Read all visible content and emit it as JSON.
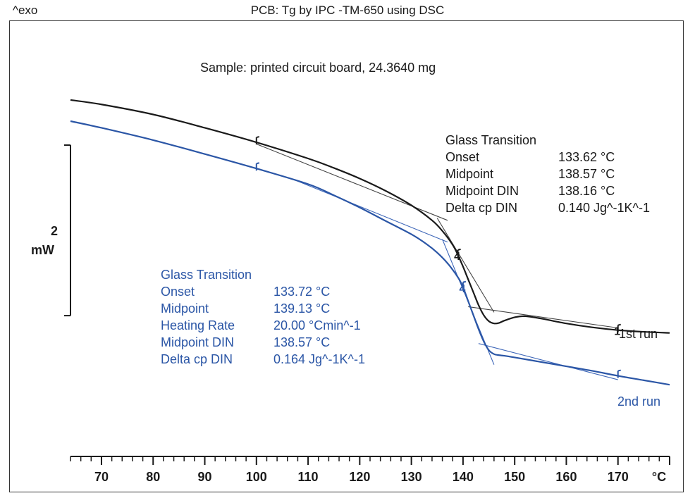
{
  "header": {
    "exo_label": "^exo",
    "title": "PCB: Tg by IPC -TM-650 using DSC"
  },
  "sample_label": "Sample: printed circuit board, 24.3640 mg",
  "scale_bar": {
    "value_label": "2",
    "unit_label": "mW",
    "magnitude": 2
  },
  "colors": {
    "run1": "#1a1a1a",
    "run2": "#2b56a6",
    "axis": "#1a1a1a"
  },
  "results_run1": {
    "heading": "Glass Transition",
    "rows": [
      {
        "label": "Onset",
        "value": "133.62 °C"
      },
      {
        "label": "Midpoint",
        "value": "138.57 °C"
      },
      {
        "label": "Midpoint DIN",
        "value": "138.16 °C"
      },
      {
        "label": "Delta cp DIN",
        "value": "0.140 Jg^-1K^-1"
      }
    ]
  },
  "results_run2": {
    "heading": "Glass Transition",
    "rows": [
      {
        "label": "Onset",
        "value": "133.72 °C"
      },
      {
        "label": "Midpoint",
        "value": "139.13 °C"
      },
      {
        "label": "Heating Rate",
        "value": "20.00 °Cmin^-1"
      },
      {
        "label": "Midpoint DIN",
        "value": "138.57 °C"
      },
      {
        "label": "Delta cp DIN",
        "value": "0.164 Jg^-1K^-1"
      }
    ]
  },
  "chart_data": {
    "type": "line",
    "title": "PCB: Tg by IPC -TM-650 using DSC",
    "xlabel": "°C",
    "ylabel": "^exo",
    "xlim": [
      64,
      180
    ],
    "ylim": [
      0,
      6.32
    ],
    "x_ticks": [
      70,
      80,
      90,
      100,
      110,
      120,
      130,
      140,
      150,
      160,
      170
    ],
    "x_tick_labels": [
      "70",
      "80",
      "90",
      "100",
      "110",
      "120",
      "130",
      "140",
      "150",
      "160",
      "170"
    ],
    "series": [
      {
        "name": "1st run",
        "label": "1st run",
        "x": [
          64,
          70,
          80,
          90,
          100,
          110,
          115,
          120,
          125,
          130,
          134,
          136,
          138,
          139,
          140,
          141,
          142,
          143,
          144,
          145,
          146,
          147,
          148,
          150,
          152,
          155,
          160,
          165,
          170,
          175,
          180
        ],
        "y": [
          5.79,
          5.71,
          5.53,
          5.29,
          5.03,
          4.74,
          4.57,
          4.38,
          4.16,
          3.9,
          3.63,
          3.44,
          3.19,
          3.01,
          2.8,
          2.57,
          2.34,
          2.11,
          1.93,
          1.82,
          1.78,
          1.79,
          1.83,
          1.89,
          1.91,
          1.87,
          1.78,
          1.71,
          1.66,
          1.63,
          1.61
        ],
        "markers": [
          100,
          139,
          170
        ],
        "marker_labels": [
          "",
          "4",
          "1"
        ],
        "tangents": [
          {
            "x": [
              100,
              137
            ],
            "y": [
              5.0,
              3.63
            ]
          },
          {
            "x": [
              135,
              146
            ],
            "y": [
              3.67,
              1.98
            ]
          },
          {
            "x": [
              141,
              170
            ],
            "y": [
              2.08,
              1.7
            ]
          }
        ]
      },
      {
        "name": "2nd run",
        "label": "2nd run",
        "x": [
          64,
          70,
          80,
          90,
          100,
          110,
          115,
          120,
          125,
          130,
          133,
          135,
          137,
          139,
          140,
          141,
          142,
          143,
          144,
          145,
          146,
          147,
          148,
          150,
          155,
          160,
          165,
          170,
          175,
          180
        ],
        "y": [
          5.41,
          5.29,
          5.07,
          4.82,
          4.56,
          4.28,
          4.08,
          3.86,
          3.62,
          3.38,
          3.2,
          3.05,
          2.86,
          2.61,
          2.43,
          2.18,
          1.93,
          1.68,
          1.46,
          1.3,
          1.23,
          1.21,
          1.2,
          1.17,
          1.09,
          1.01,
          0.93,
          0.84,
          0.76,
          0.68
        ],
        "markers": [
          100,
          140,
          170
        ],
        "marker_labels": [
          "",
          "4",
          ""
        ],
        "tangents": [
          {
            "x": [
              107,
              137
            ],
            "y": [
              4.37,
              3.24
            ]
          },
          {
            "x": [
              136,
              146
            ],
            "y": [
              3.29,
              1.04
            ]
          },
          {
            "x": [
              143,
              170
            ],
            "y": [
              1.42,
              0.77
            ]
          }
        ]
      }
    ]
  }
}
